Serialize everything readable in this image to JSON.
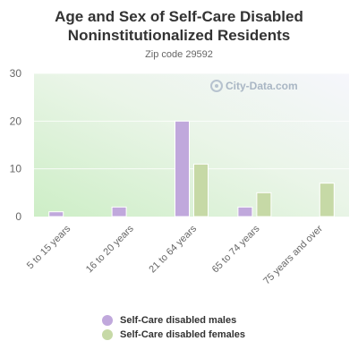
{
  "chart_data": {
    "type": "bar",
    "title": "Age and Sex of Self-Care Disabled\nNoninstitutionalized Residents",
    "subtitle": "Zip code 29592",
    "watermark": "City-Data.com",
    "categories": [
      "5 to 15 years",
      "16 to 20 years",
      "21 to 64 years",
      "65 to 74 years",
      "75 years and over"
    ],
    "series": [
      {
        "name": "Self-Care disabled males",
        "color": "#c0a8dc",
        "values": [
          1,
          2,
          20,
          2,
          0
        ]
      },
      {
        "name": "Self-Care disabled females",
        "color": "#c6d9a6",
        "values": [
          0,
          0,
          11,
          5,
          7
        ]
      }
    ],
    "ylim": [
      0,
      30
    ],
    "yticks": [
      0,
      10,
      20,
      30
    ],
    "legend_position": "bottom"
  }
}
